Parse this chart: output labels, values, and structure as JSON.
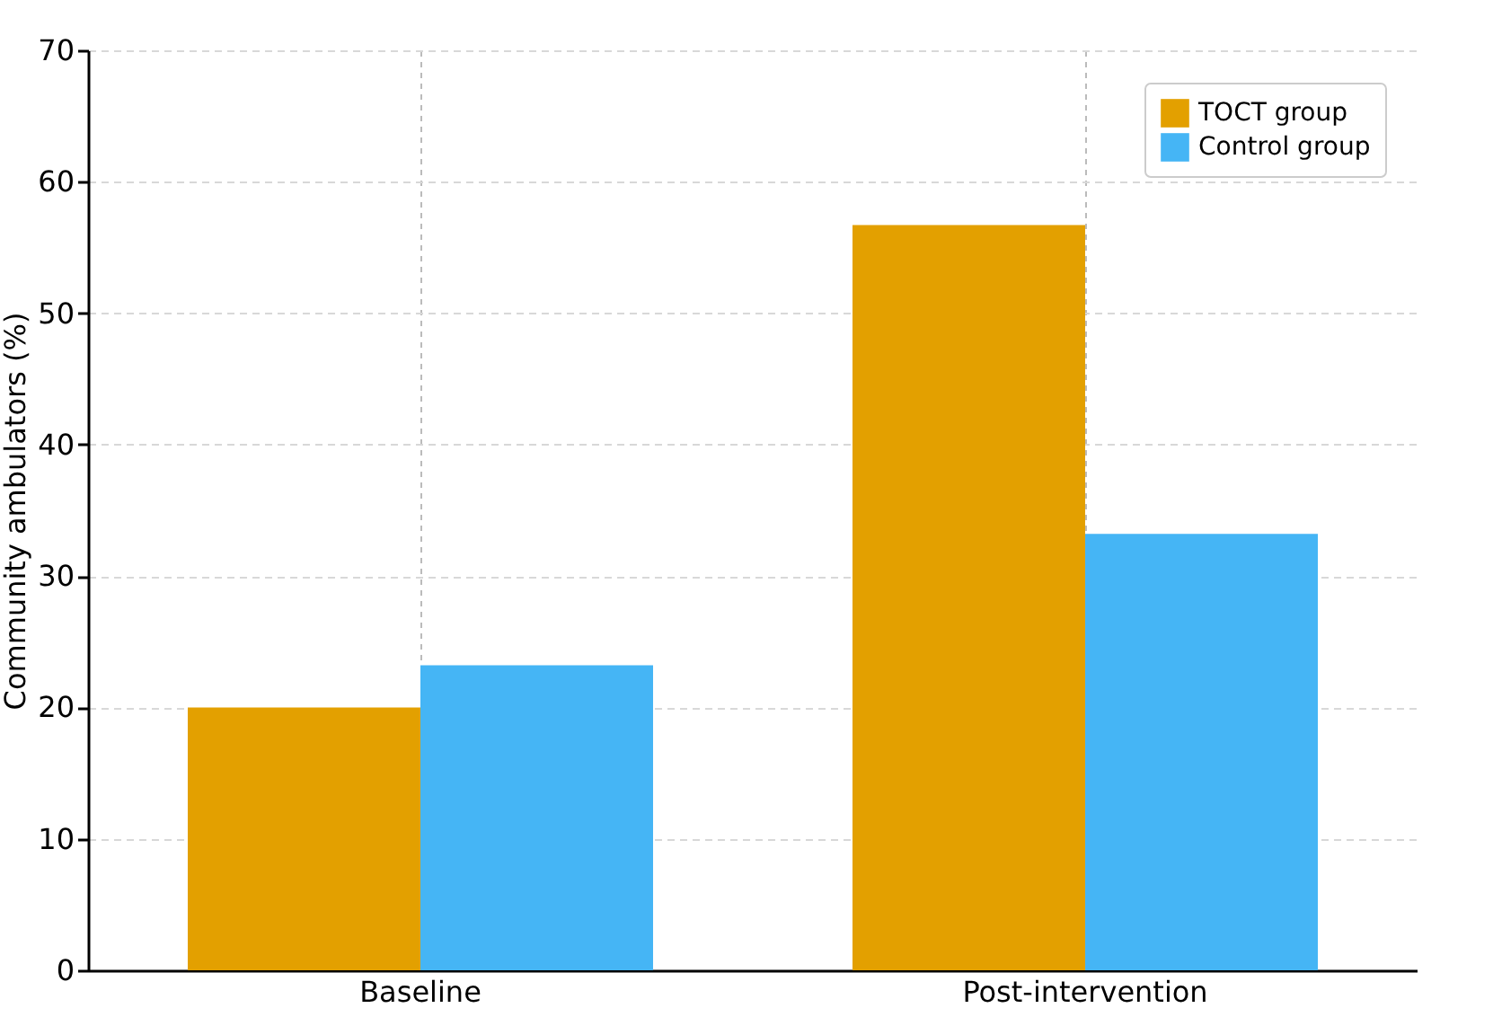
{
  "chart_data": {
    "type": "bar",
    "ylabel": "Community ambulators (%)",
    "categories": [
      "Baseline",
      "Post-intervention"
    ],
    "series": [
      {
        "name": "TOCT group",
        "color": "#e3a000",
        "values": [
          20,
          56.7
        ]
      },
      {
        "name": "Control group",
        "color": "#45b5f5",
        "values": [
          23.2,
          33.2
        ]
      }
    ],
    "ylim": [
      0,
      70
    ],
    "yticks": [
      0,
      10,
      20,
      30,
      40,
      50,
      60,
      70
    ],
    "grid": true,
    "legend": "top right"
  }
}
